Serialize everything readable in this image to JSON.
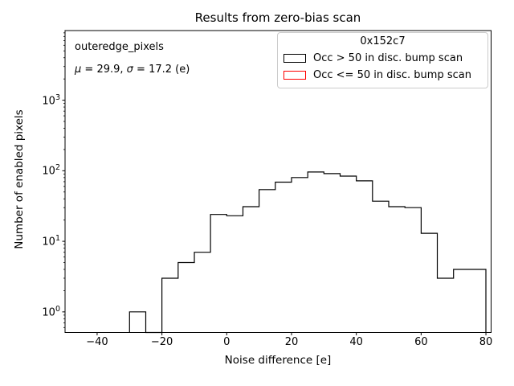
{
  "chart": {
    "title": "Results from zero-bias scan",
    "xlabel": "Noise difference [e]",
    "ylabel": "Number of enabled pixels",
    "annotation": {
      "line1": "outeredge_pixels",
      "line2_parts": [
        {
          "text": "μ",
          "italic": true
        },
        {
          "text": " = 29.9, ",
          "italic": false
        },
        {
          "text": "σ",
          "italic": true
        },
        {
          "text": " = 17.2 (e)",
          "italic": false
        }
      ]
    },
    "legend": {
      "title": "0x152c7",
      "entries": [
        {
          "label": "Occ > 50 in disc. bump scan",
          "color": "#000000"
        },
        {
          "label": "Occ <= 50 in disc. bump scan",
          "color": "#ff0000"
        }
      ]
    }
  },
  "chart_data": {
    "type": "histogram",
    "histtype": "step",
    "title": "Results from zero-bias scan",
    "xlabel": "Noise difference [e]",
    "ylabel": "Number of enabled pixels",
    "yscale": "log",
    "grid": false,
    "legend_position": "upper right",
    "xlim": [
      -49.9,
      81.6
    ],
    "ylim": [
      0.51,
      9700
    ],
    "x_ticks": [
      -40,
      -20,
      0,
      20,
      40,
      60,
      80
    ],
    "y_ticks": [
      1,
      10,
      100,
      1000
    ],
    "bin_edges": [
      -30,
      -25,
      -20,
      -15,
      -10,
      -5,
      0,
      5,
      10,
      15,
      20,
      25,
      30,
      35,
      40,
      45,
      50,
      55,
      60,
      65,
      70,
      75,
      80
    ],
    "series": [
      {
        "name": "Occ > 50 in disc. bump scan",
        "color": "#000000",
        "counts": [
          1,
          0,
          3,
          5,
          7,
          24,
          23,
          31,
          54,
          69,
          80,
          96,
          91,
          84,
          72,
          37,
          31,
          30,
          13,
          3,
          4,
          4
        ]
      },
      {
        "name": "Occ <= 50 in disc. bump scan",
        "color": "#ff0000",
        "counts": []
      }
    ],
    "stats": {
      "mu": 29.9,
      "sigma": 17.2
    }
  }
}
